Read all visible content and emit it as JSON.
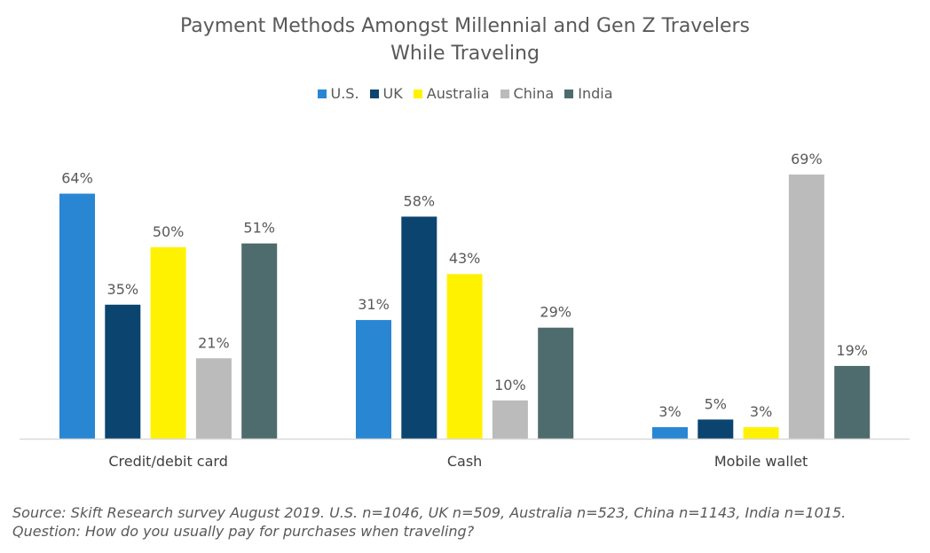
{
  "chart_data": {
    "type": "bar",
    "title": [
      "Payment Methods Amongst Millennial and Gen Z Travelers",
      "While Traveling"
    ],
    "categories": [
      "Credit/debit card",
      "Cash",
      "Mobile wallet"
    ],
    "series": [
      {
        "name": "U.S.",
        "color": "#2986D2",
        "values": [
          64,
          31,
          3
        ]
      },
      {
        "name": "UK",
        "color": "#0B446F",
        "values": [
          35,
          58,
          5
        ]
      },
      {
        "name": "Australia",
        "color": "#FFF200",
        "values": [
          50,
          43,
          3
        ]
      },
      {
        "name": "China",
        "color": "#BBBBBB",
        "values": [
          21,
          10,
          69
        ]
      },
      {
        "name": "India",
        "color": "#4E6C6E",
        "values": [
          51,
          29,
          19
        ]
      }
    ],
    "value_suffix": "%",
    "ylim": [
      0,
      70
    ],
    "grid": false,
    "legend_position": "top-center",
    "data_labels": true
  },
  "source_note": "Source: Skift Research survey August 2019. U.S. n=1046, UK n=509, Australia n=523, China n=1143, India n=1015. Question: How do you usually pay for purchases when traveling?"
}
